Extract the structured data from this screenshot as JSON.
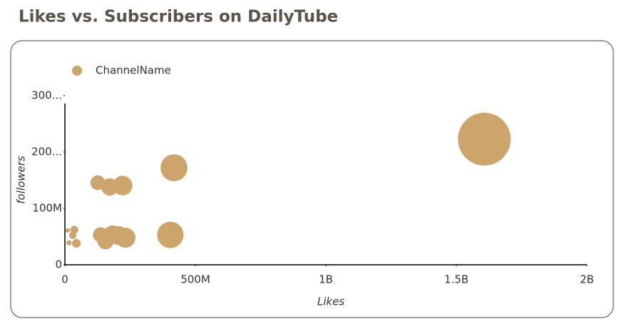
{
  "chart_data": {
    "type": "bubble",
    "title": "Likes vs. Subscribers on DailyTube",
    "x_label": "Likes",
    "y_label": "followers",
    "series": [
      {
        "name": "ChannelName",
        "color": "#cda56c",
        "x": [
          1607000000,
          418000000,
          404000000,
          126000000,
          172000000,
          221000000,
          137000000,
          183000000,
          205000000,
          156000000,
          232000000,
          36000000,
          30000000,
          44000000,
          16000000,
          11000000
        ],
        "values": [
          222800000,
          172000000,
          53000000,
          145600000,
          138000000,
          140500000,
          53000000,
          54000000,
          52000000,
          42000000,
          48000000,
          62000000,
          52000000,
          38000000,
          39000000,
          61000000
        ]
      }
    ],
    "xlim": [
      0,
      2000000000
    ],
    "xticks": [
      0,
      {
        "value": 500000000,
        "label": "500M"
      },
      {
        "value": 1000000000,
        "label": "1B"
      },
      {
        "value": 1500000000,
        "label": "1.5B"
      },
      {
        "value": 2000000000,
        "label": "2B"
      }
    ],
    "ylim": [
      0,
      300000000
    ],
    "yticks": [
      0,
      {
        "value": 100000000,
        "label": "100M"
      },
      {
        "value": 200000000,
        "label": "200..."
      },
      {
        "value": 300000000,
        "label": "300..."
      }
    ],
    "legend": "top-left"
  }
}
